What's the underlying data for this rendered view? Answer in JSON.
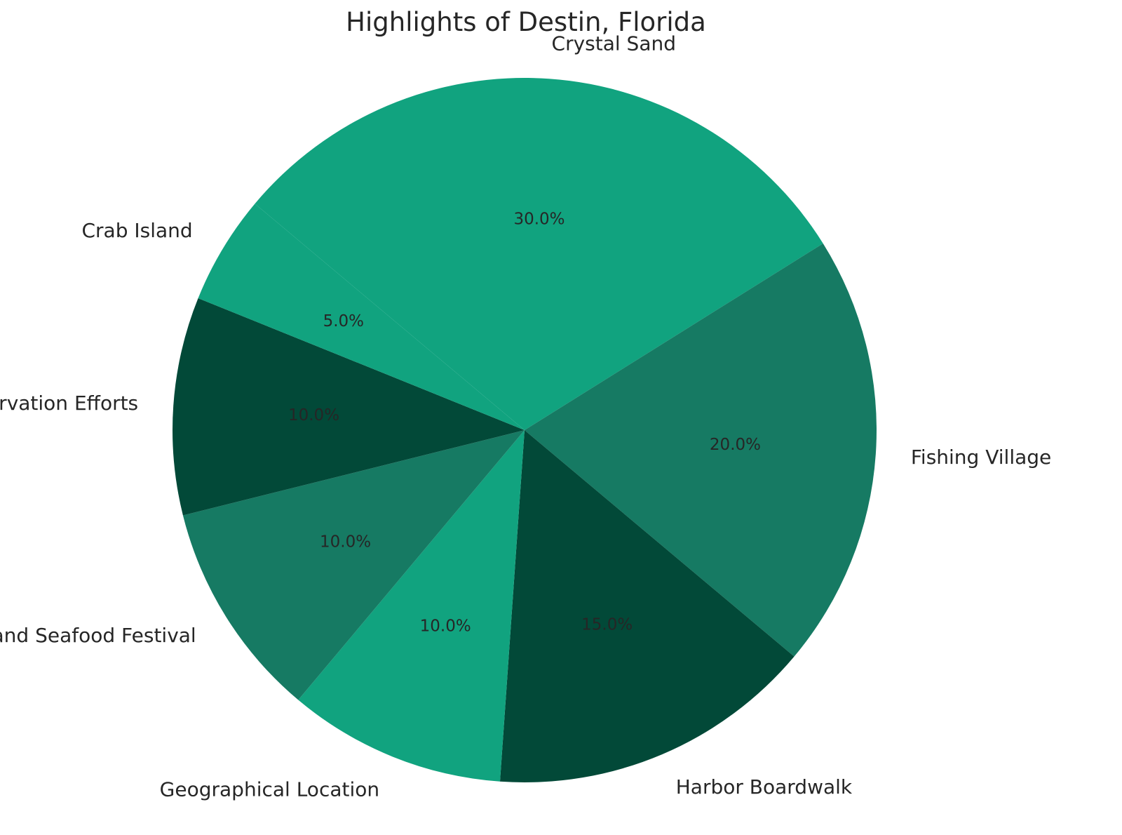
{
  "chart_data": {
    "type": "pie",
    "title": "Highlights of Destin, Florida",
    "slices": [
      {
        "label": "Crystal Sand",
        "value": 30.0,
        "pct_label": "30.0%",
        "color": "#11a37f"
      },
      {
        "label": "Fishing Village",
        "value": 20.0,
        "pct_label": "20.0%",
        "color": "#167a63"
      },
      {
        "label": "Harbor Boardwalk",
        "value": 15.0,
        "pct_label": "15.0%",
        "color": "#024938"
      },
      {
        "label": "Geographical Location",
        "value": 10.0,
        "pct_label": "10.0%",
        "color": "#11a37f"
      },
      {
        "label": "Fishing Tournaments and Seafood Festival",
        "value": 10.0,
        "pct_label": "10.0%",
        "color": "#167a63"
      },
      {
        "label": "Conservation Efforts",
        "value": 10.0,
        "pct_label": "10.0%",
        "color": "#024938"
      },
      {
        "label": "Crab Island",
        "value": 5.0,
        "pct_label": "5.0%",
        "color": "#11a37f"
      }
    ],
    "start_angle_deg": 140,
    "direction": "clockwise",
    "legend": "none"
  }
}
